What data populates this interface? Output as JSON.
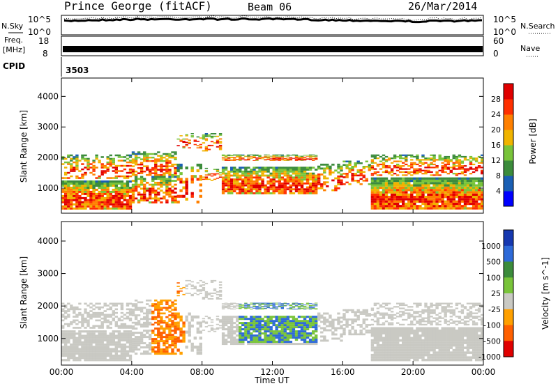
{
  "header": {
    "station": "Prince George (fitACF)",
    "beam": "Beam 06",
    "date": "26/Mar/2014"
  },
  "panel_labels": {
    "nsky": "N.Sky",
    "nsearch": "N.Search",
    "freq_line1": "Freq.",
    "freq_line2": "[MHz]",
    "nave": "Nave",
    "cpid": "CPID",
    "cpid_value": "3503"
  },
  "chart_data": [
    {
      "type": "line",
      "title": "N.Sky / N.Search",
      "ylabel_left": "N.Sky",
      "ylabel_right": "N.Search",
      "yscale": "log",
      "ylim": [
        1,
        100000
      ],
      "yticks_left": [
        "10^5",
        "10^0"
      ],
      "yticks_right": [
        "10^5",
        "10^0"
      ],
      "x": [
        "00:00",
        "04:00",
        "08:00",
        "12:00",
        "16:00",
        "20:00",
        "00:00"
      ],
      "series": [
        {
          "name": "N.Sky",
          "values": [
            10000,
            40000,
            50000,
            45000,
            20000,
            8000,
            15000
          ]
        }
      ]
    },
    {
      "type": "line",
      "title": "Freq. / Nave",
      "ylabel_left": "Freq. [MHz]",
      "ylabel_right": "Nave",
      "yticks_left": [
        "18",
        "8"
      ],
      "yticks_right": [
        "60",
        "0"
      ],
      "series": [
        {
          "name": "Freq.",
          "values": [
            10.5,
            10.5,
            10.5,
            10.5,
            10.5,
            10.5,
            10.5
          ]
        }
      ]
    },
    {
      "type": "heatmap",
      "ylabel": "Slant Range [km]",
      "ylim": [
        180,
        4600
      ],
      "yticks": [
        "1000",
        "2000",
        "3000",
        "4000"
      ],
      "colorbar_label": "Power [dB]",
      "colorbar_ticks": [
        "4",
        "8",
        "12",
        "16",
        "20",
        "24",
        "28"
      ],
      "colorbar_colors": [
        "#0000ff",
        "#1a5fb4",
        "#3c8c3c",
        "#79c43a",
        "#f0b400",
        "#ff8000",
        "#ff3000",
        "#e00000"
      ]
    },
    {
      "type": "heatmap",
      "ylabel": "Slant Range [km]",
      "ylim": [
        180,
        4600
      ],
      "yticks": [
        "1000",
        "2000",
        "3000",
        "4000"
      ],
      "xticks": [
        "00:00",
        "04:00",
        "08:00",
        "12:00",
        "16:00",
        "20:00",
        "00:00"
      ],
      "xlabel": "Time UT",
      "colorbar_label": "Velocity [m s^-1]",
      "colorbar_ticks": [
        "1000",
        "500",
        "100",
        "25",
        "-25",
        "-100",
        "-500",
        "-1000"
      ],
      "colorbar_colors": [
        "#1638b0",
        "#2e6ad8",
        "#3c8c3c",
        "#79c43a",
        "#c9c9c3",
        "#ffa000",
        "#ff6000",
        "#e00000"
      ]
    }
  ]
}
